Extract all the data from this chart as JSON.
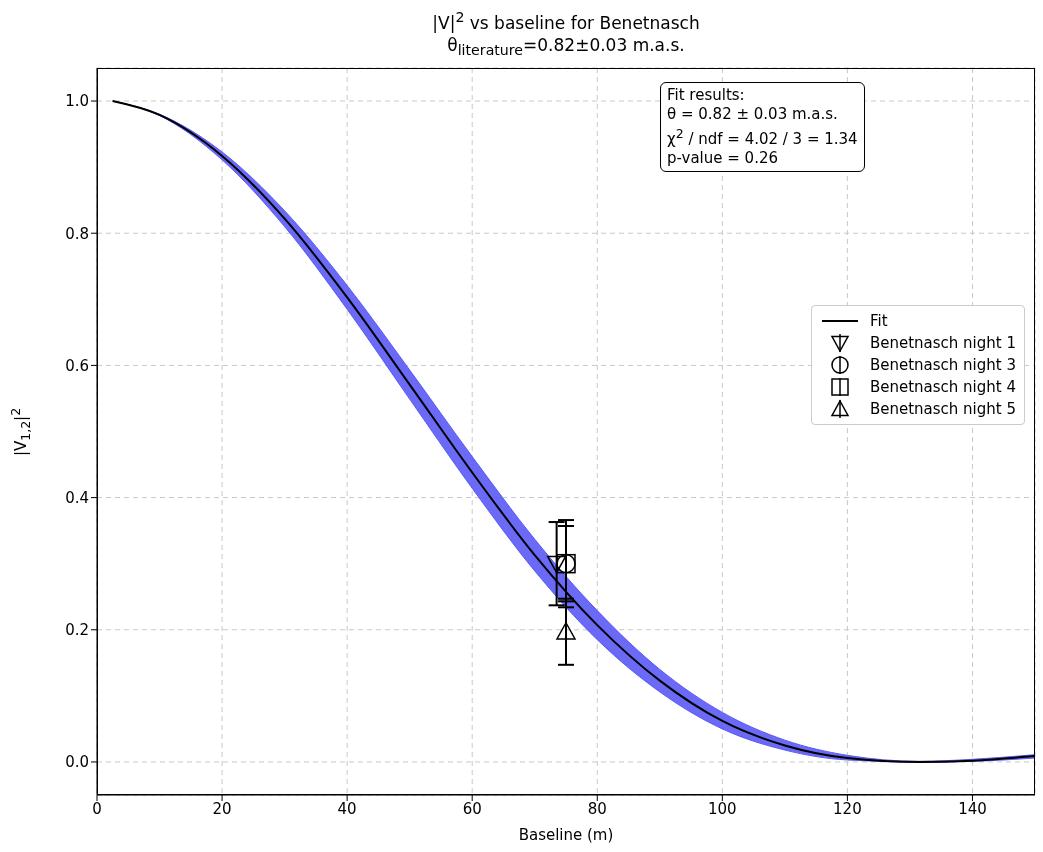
{
  "chart_data": {
    "type": "scatter",
    "title": "|V|$^{2}$ vs baseline for Benetnasch",
    "subtitle": "θ$_{literature}$=0.82±0.03 m.a.s.",
    "xlabel": "Baseline (m)",
    "ylabel": "|V$_{1,2}$|$^{2}$",
    "xlim": [
      0,
      150
    ],
    "xticks": [
      0,
      20,
      40,
      60,
      80,
      100,
      120,
      140
    ],
    "ylim": [
      -0.05,
      1.05
    ],
    "yticks": [
      {
        "value": 0,
        "label": "0.0"
      },
      {
        "value": 0.2,
        "label": "0.2"
      },
      {
        "value": 0.4,
        "label": "0.4"
      },
      {
        "value": 0.6,
        "label": "0.6"
      },
      {
        "value": 0.8,
        "label": "0.8"
      },
      {
        "value": 1,
        "label": "1.0"
      }
    ],
    "grid": true,
    "legend": "right",
    "annotations": [
      "Fit results:",
      "θ = 0.82 ± 0.03 m.a.s.",
      "χ$^{2}$ / ndf = 4.02 / 3 = 1.34",
      "p-value = 0.26"
    ],
    "series": [
      {
        "name": "Fit",
        "type": "line",
        "color": "#000000",
        "x": [
          2.5,
          10,
          20,
          30,
          40,
          50,
          60,
          70,
          80,
          90,
          100,
          110,
          120,
          131.5,
          140,
          150
        ],
        "values": [
          1.0,
          0.979,
          0.917,
          0.822,
          0.703,
          0.571,
          0.438,
          0.313,
          0.207,
          0.123,
          0.062,
          0.025,
          0.006,
          0.0,
          0.002,
          0.009
        ],
        "lower": [
          1.0,
          0.978,
          0.911,
          0.81,
          0.685,
          0.549,
          0.414,
          0.289,
          0.185,
          0.106,
          0.05,
          0.018,
          0.003,
          0.0,
          0.001,
          0.006
        ],
        "upper": [
          1.0,
          0.98,
          0.923,
          0.834,
          0.721,
          0.593,
          0.462,
          0.337,
          0.229,
          0.14,
          0.075,
          0.033,
          0.01,
          0.001,
          0.004,
          0.011
        ]
      },
      {
        "name": "Benetnasch night 1",
        "color": "#000000",
        "marker": "triangle_down",
        "x": [
          73.5
        ],
        "values": [
          0.3
        ],
        "errors": [
          0.063
        ]
      },
      {
        "name": "Benetnasch night 3",
        "color": "#000000",
        "marker": "circle",
        "x": [
          75
        ],
        "values": [
          0.3
        ],
        "errors": [
          0.066
        ]
      },
      {
        "name": "Benetnasch night 4",
        "color": "#000000",
        "marker": "square",
        "x": [
          75
        ],
        "values": [
          0.3
        ],
        "errors": [
          0.057
        ]
      },
      {
        "name": "Benetnasch night 5",
        "color": "#000000",
        "marker": "triangle",
        "x": [
          75
        ],
        "values": [
          0.197
        ],
        "errors": [
          0.05
        ]
      }
    ]
  }
}
